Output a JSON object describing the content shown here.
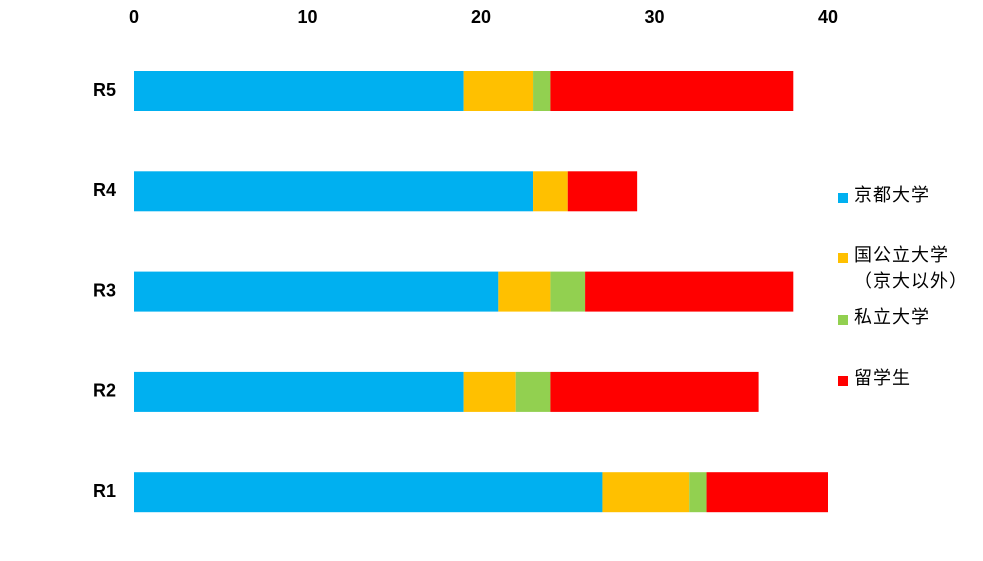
{
  "chart_data": {
    "type": "stacked-bar-horizontal",
    "categories": [
      "R5",
      "R4",
      "R3",
      "R2",
      "R1"
    ],
    "series": [
      {
        "name": "京都大学",
        "color": "#00b0f0",
        "values": [
          19,
          23,
          21,
          19,
          27
        ]
      },
      {
        "name": "国公立大学\n（京大以外）",
        "color": "#ffc000",
        "values": [
          4,
          2,
          3,
          3,
          5
        ]
      },
      {
        "name": "私立大学",
        "color": "#92d050",
        "values": [
          1,
          0,
          2,
          2,
          1
        ]
      },
      {
        "name": "留学生",
        "color": "#ff0000",
        "values": [
          14,
          4,
          12,
          12,
          7
        ]
      }
    ],
    "xlim": [
      0,
      40
    ],
    "xticks": [
      0,
      10,
      20,
      30,
      40
    ],
    "grid": false,
    "legend": "right"
  }
}
